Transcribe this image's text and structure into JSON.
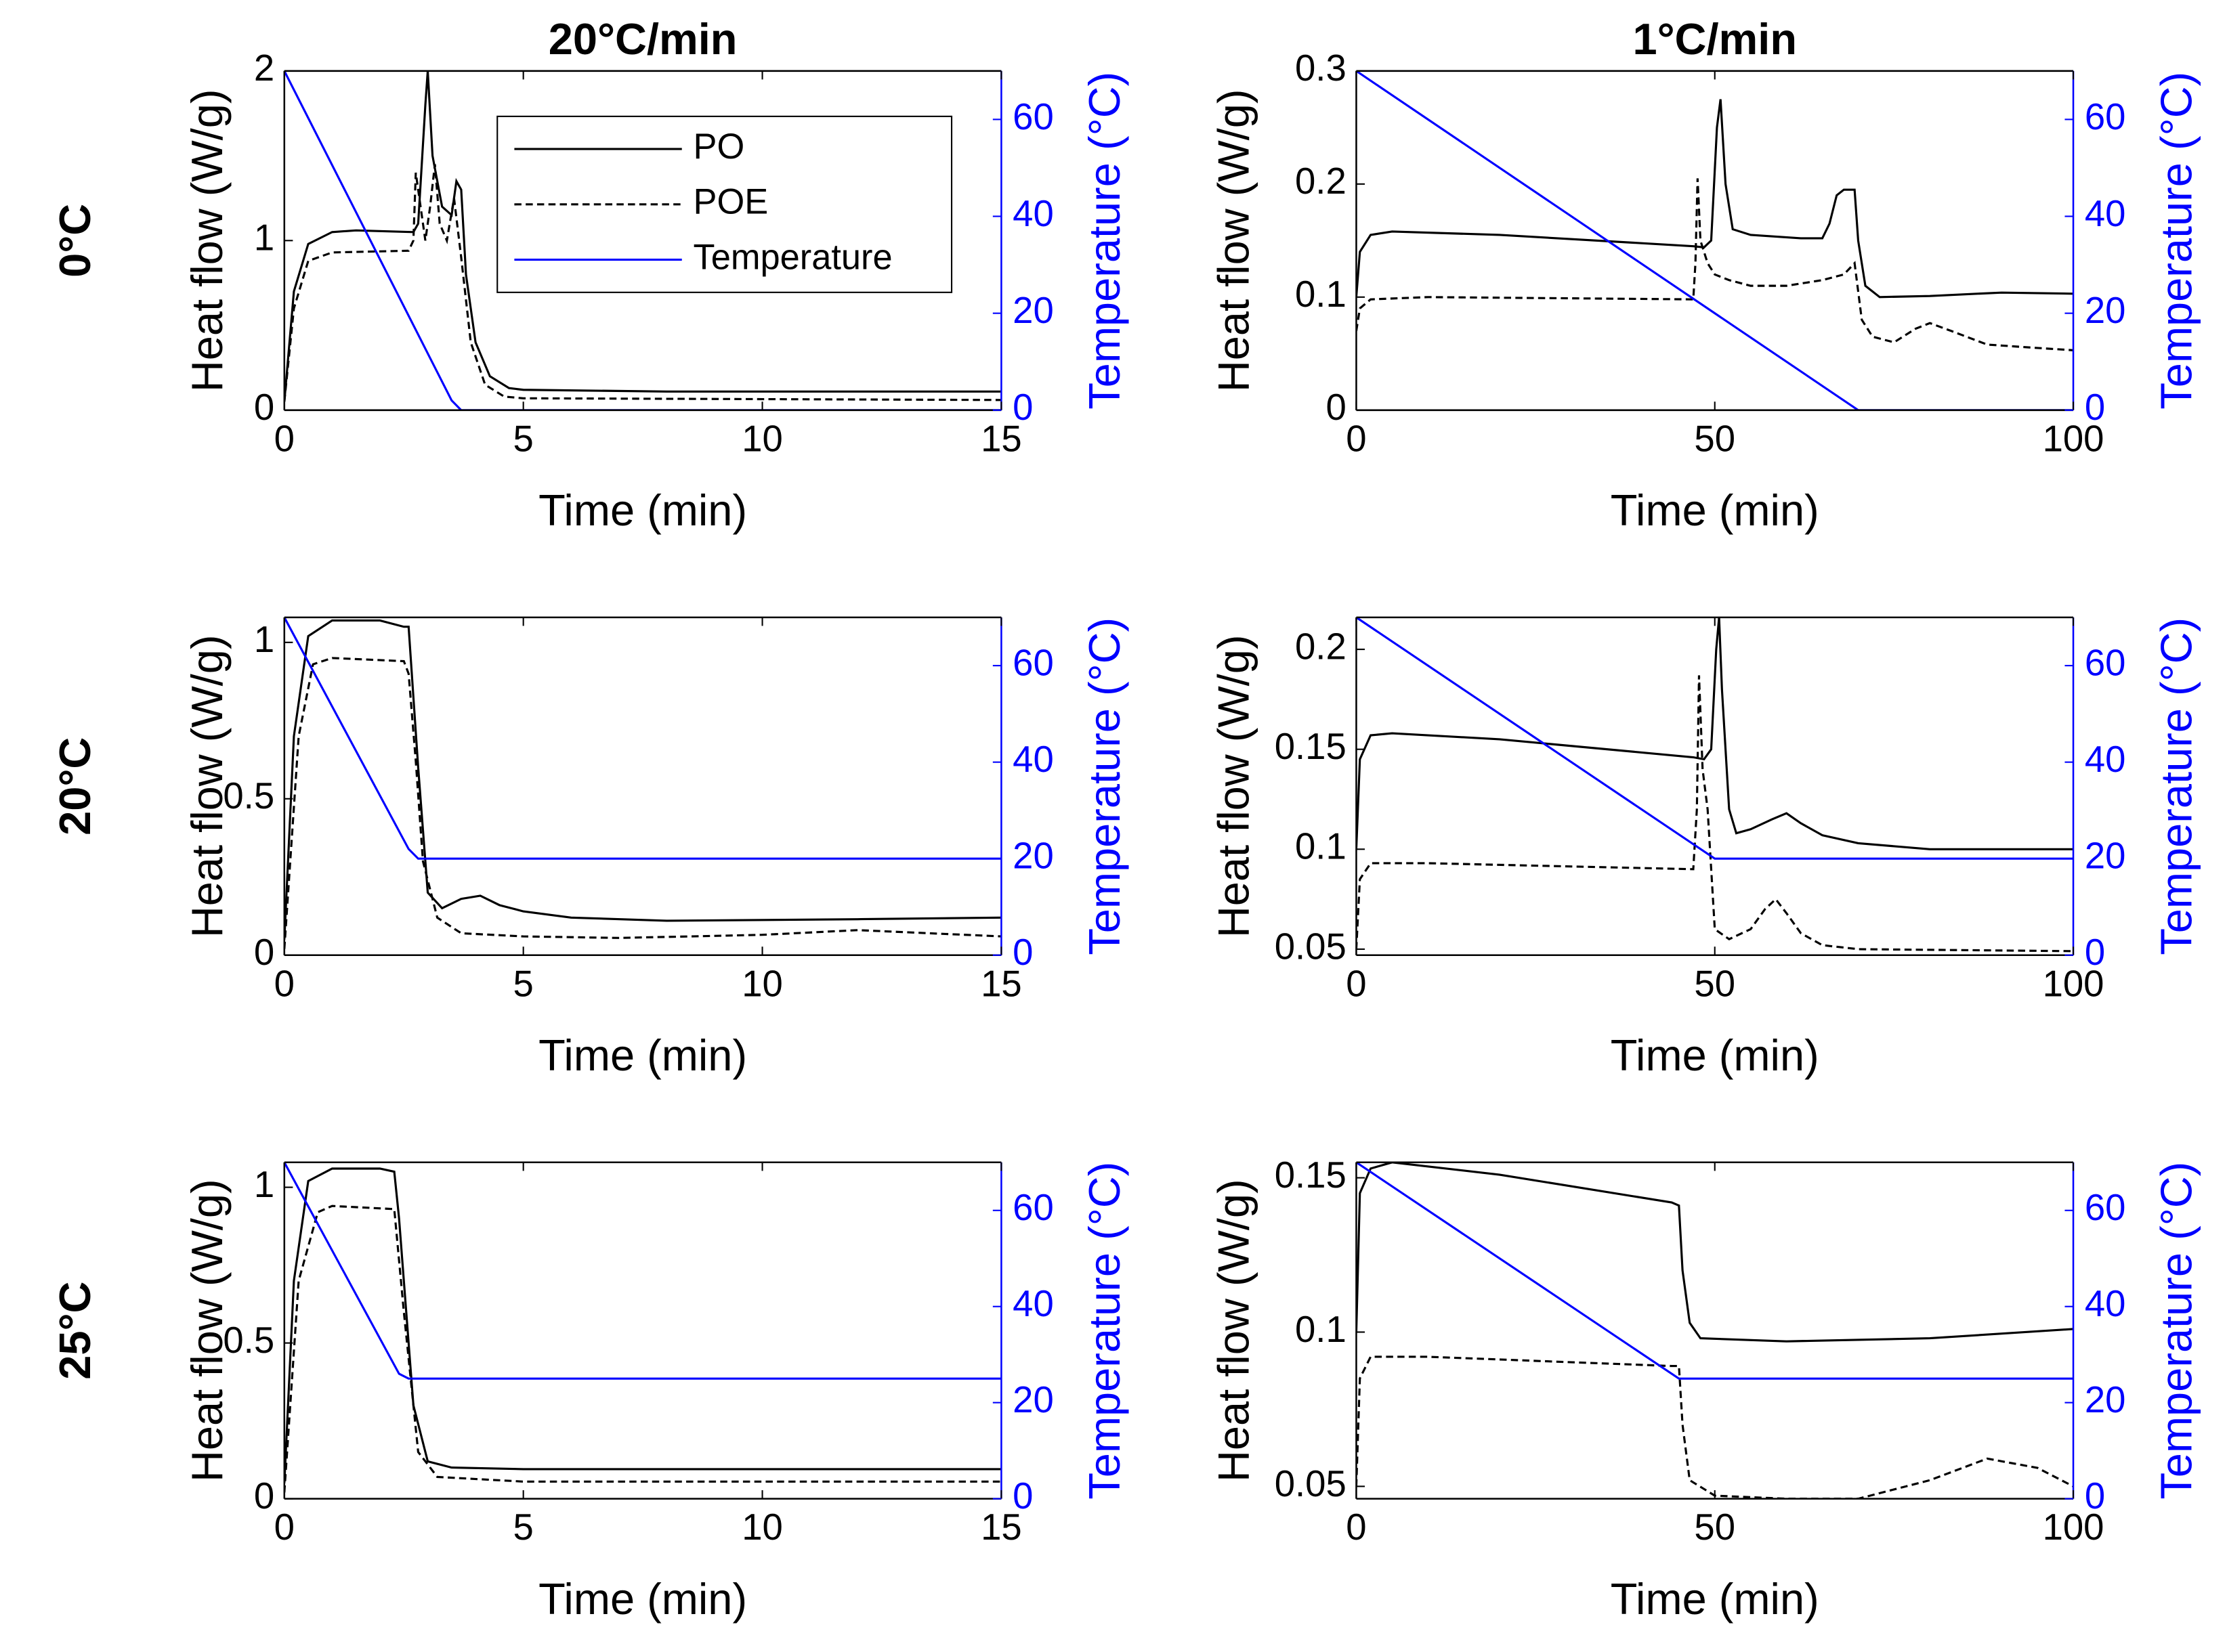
{
  "chart_data": [
    {
      "type": "line",
      "title": "20°C/min",
      "row_label": "0°C",
      "x_label": "Time (min)",
      "y_label": "Heat flow (W/g)",
      "y2_label": "Temperature (°C)",
      "xlim": [
        0,
        15
      ],
      "xticks": [
        0,
        5,
        10,
        15
      ],
      "ylim": [
        0,
        2
      ],
      "yticks": [
        0,
        1,
        2
      ],
      "y2lim": [
        0,
        70
      ],
      "y2ticks": [
        0,
        20,
        40,
        60
      ],
      "legend": "upper right",
      "series": [
        {
          "name": "PO",
          "color": "#000000",
          "linestyle": "solid",
          "x": [
            0,
            0.2,
            0.5,
            1,
            1.5,
            2.7,
            2.8,
            2.95,
            3.0,
            3.1,
            3.3,
            3.5,
            3.6,
            3.7,
            3.8,
            4.0,
            4.3,
            4.7,
            5,
            8,
            15
          ],
          "values": [
            0.05,
            0.7,
            0.98,
            1.05,
            1.06,
            1.05,
            1.1,
            1.8,
            2.0,
            1.5,
            1.2,
            1.15,
            1.35,
            1.3,
            0.8,
            0.4,
            0.2,
            0.13,
            0.12,
            0.11,
            0.11
          ]
        },
        {
          "name": "POE",
          "color": "#000000",
          "linestyle": "dashed",
          "x": [
            0,
            0.2,
            0.5,
            1,
            2.6,
            2.7,
            2.75,
            2.85,
            2.95,
            3.05,
            3.15,
            3.25,
            3.4,
            3.55,
            3.7,
            3.9,
            4.2,
            4.6,
            5,
            15
          ],
          "values": [
            0.05,
            0.6,
            0.88,
            0.93,
            0.94,
            1.0,
            1.4,
            1.2,
            1.0,
            1.2,
            1.45,
            1.1,
            1.0,
            1.25,
            0.9,
            0.4,
            0.15,
            0.08,
            0.07,
            0.06
          ]
        },
        {
          "name": "Temperature",
          "color": "#0000ff",
          "linestyle": "solid",
          "axis": "y2",
          "x": [
            0,
            3.5,
            3.7,
            15
          ],
          "values": [
            70,
            2,
            0,
            0
          ]
        }
      ]
    },
    {
      "type": "line",
      "title": "1°C/min",
      "x_label": "Time (min)",
      "y_label": "Heat flow (W/g)",
      "y2_label": "Temperature (°C)",
      "xlim": [
        0,
        100
      ],
      "xticks": [
        0,
        50,
        100
      ],
      "ylim": [
        0,
        0.3
      ],
      "yticks": [
        0,
        0.1,
        0.2,
        0.3
      ],
      "y2lim": [
        0,
        70
      ],
      "y2ticks": [
        0,
        20,
        40,
        60
      ],
      "series": [
        {
          "color": "#000000",
          "linestyle": "solid",
          "x": [
            0,
            0.5,
            2,
            5,
            20,
            47,
            48.5,
            49.5,
            50.3,
            50.8,
            51.5,
            52.5,
            55,
            62,
            65,
            66,
            67,
            68,
            69.5,
            70,
            71,
            73,
            80,
            90,
            100
          ],
          "values": [
            0.1,
            0.14,
            0.155,
            0.158,
            0.155,
            0.145,
            0.144,
            0.15,
            0.25,
            0.275,
            0.2,
            0.16,
            0.155,
            0.152,
            0.152,
            0.165,
            0.19,
            0.195,
            0.195,
            0.15,
            0.11,
            0.1,
            0.101,
            0.104,
            0.103
          ]
        },
        {
          "color": "#000000",
          "linestyle": "dashed",
          "x": [
            0,
            0.5,
            2,
            10,
            47,
            47.3,
            47.6,
            48,
            49,
            50,
            52,
            55,
            60,
            65,
            68,
            69.5,
            70.5,
            72,
            75,
            78,
            80,
            83,
            88,
            95,
            100
          ],
          "values": [
            0.07,
            0.09,
            0.098,
            0.1,
            0.098,
            0.13,
            0.205,
            0.15,
            0.13,
            0.12,
            0.115,
            0.11,
            0.11,
            0.115,
            0.12,
            0.13,
            0.08,
            0.065,
            0.06,
            0.072,
            0.077,
            0.07,
            0.058,
            0.055,
            0.053
          ]
        },
        {
          "color": "#0000ff",
          "linestyle": "solid",
          "axis": "y2",
          "x": [
            0,
            70,
            100
          ],
          "values": [
            70,
            0,
            0
          ]
        }
      ]
    },
    {
      "type": "line",
      "row_label": "20°C",
      "x_label": "Time (min)",
      "y_label": "Heat flow (W/g)",
      "y2_label": "Temperature (°C)",
      "xlim": [
        0,
        15
      ],
      "xticks": [
        0,
        5,
        10,
        15
      ],
      "ylim": [
        0,
        1.08
      ],
      "yticks": [
        0,
        0.5,
        1
      ],
      "y2lim": [
        0,
        70
      ],
      "y2ticks": [
        0,
        20,
        40,
        60
      ],
      "series": [
        {
          "color": "#000000",
          "linestyle": "solid",
          "x": [
            0,
            0.2,
            0.5,
            1,
            2,
            2.5,
            2.6,
            2.8,
            3.0,
            3.3,
            3.7,
            4.1,
            4.5,
            5,
            6,
            8,
            12,
            15
          ],
          "values": [
            0.05,
            0.7,
            1.02,
            1.07,
            1.07,
            1.05,
            1.05,
            0.6,
            0.2,
            0.15,
            0.18,
            0.19,
            0.16,
            0.14,
            0.12,
            0.11,
            0.115,
            0.12
          ]
        },
        {
          "color": "#000000",
          "linestyle": "dashed",
          "x": [
            0,
            0.3,
            0.6,
            1,
            2.5,
            2.6,
            2.75,
            2.9,
            3.2,
            3.7,
            5,
            7,
            10,
            12,
            15
          ],
          "values": [
            0.02,
            0.7,
            0.93,
            0.95,
            0.94,
            0.9,
            0.62,
            0.3,
            0.12,
            0.07,
            0.06,
            0.055,
            0.065,
            0.08,
            0.06
          ]
        },
        {
          "color": "#0000ff",
          "linestyle": "solid",
          "axis": "y2",
          "x": [
            0,
            2.6,
            2.8,
            15
          ],
          "values": [
            70,
            22,
            20,
            20
          ]
        }
      ]
    },
    {
      "type": "line",
      "x_label": "Time (min)",
      "y_label": "Heat flow (W/g)",
      "y2_label": "Temperature (°C)",
      "xlim": [
        0,
        100
      ],
      "xticks": [
        0,
        50,
        100
      ],
      "ylim": [
        0.047,
        0.216
      ],
      "yticks": [
        0.05,
        0.1,
        0.15,
        0.2
      ],
      "y2lim": [
        0,
        70
      ],
      "y2ticks": [
        0,
        20,
        40,
        60
      ],
      "series": [
        {
          "color": "#000000",
          "linestyle": "solid",
          "x": [
            0,
            0.5,
            2,
            5,
            20,
            47,
            48.5,
            49.5,
            50.2,
            50.6,
            51,
            52,
            53,
            55,
            58,
            60,
            62,
            65,
            70,
            80,
            100
          ],
          "values": [
            0.1,
            0.145,
            0.157,
            0.158,
            0.155,
            0.146,
            0.145,
            0.15,
            0.2,
            0.216,
            0.18,
            0.12,
            0.108,
            0.11,
            0.115,
            0.118,
            0.113,
            0.107,
            0.103,
            0.1,
            0.1
          ]
        },
        {
          "color": "#000000",
          "linestyle": "dashed",
          "x": [
            0,
            0.5,
            2,
            10,
            47,
            47.5,
            47.8,
            48.3,
            49,
            49.5,
            50,
            52,
            55,
            57,
            58.5,
            60,
            62,
            65,
            70,
            100
          ],
          "values": [
            0.05,
            0.085,
            0.093,
            0.093,
            0.09,
            0.12,
            0.187,
            0.14,
            0.12,
            0.09,
            0.06,
            0.055,
            0.06,
            0.07,
            0.075,
            0.068,
            0.058,
            0.052,
            0.05,
            0.049
          ]
        },
        {
          "color": "#0000ff",
          "linestyle": "solid",
          "axis": "y2",
          "x": [
            0,
            50,
            100
          ],
          "values": [
            70,
            20,
            20
          ]
        }
      ]
    },
    {
      "type": "line",
      "row_label": "25°C",
      "x_label": "Time (min)",
      "y_label": "Heat flow (W/g)",
      "y2_label": "Temperature (°C)",
      "xlim": [
        0,
        15
      ],
      "xticks": [
        0,
        5,
        10,
        15
      ],
      "ylim": [
        0,
        1.08
      ],
      "yticks": [
        0,
        0.5,
        1
      ],
      "y2lim": [
        0,
        70
      ],
      "y2ticks": [
        0,
        20,
        40,
        60
      ],
      "series": [
        {
          "color": "#000000",
          "linestyle": "solid",
          "x": [
            0,
            0.2,
            0.5,
            1,
            2,
            2.3,
            2.4,
            2.7,
            3.0,
            3.5,
            5,
            15
          ],
          "values": [
            0.05,
            0.7,
            1.02,
            1.06,
            1.06,
            1.05,
            0.9,
            0.3,
            0.12,
            0.1,
            0.095,
            0.095
          ]
        },
        {
          "color": "#000000",
          "linestyle": "dashed",
          "x": [
            0,
            0.3,
            0.7,
            1,
            2.3,
            2.5,
            2.8,
            3.2,
            5,
            15
          ],
          "values": [
            0.02,
            0.7,
            0.92,
            0.94,
            0.93,
            0.6,
            0.15,
            0.07,
            0.055,
            0.055
          ]
        },
        {
          "color": "#0000ff",
          "linestyle": "solid",
          "axis": "y2",
          "x": [
            0,
            2.4,
            2.6,
            15
          ],
          "values": [
            70,
            26,
            25,
            25
          ]
        }
      ]
    },
    {
      "type": "line",
      "x_label": "Time (min)",
      "y_label": "Heat flow (W/g)",
      "y2_label": "Temperature (°C)",
      "xlim": [
        0,
        100
      ],
      "xticks": [
        0,
        50,
        100
      ],
      "ylim": [
        0.046,
        0.155
      ],
      "yticks": [
        0.05,
        0.1,
        0.15
      ],
      "y2lim": [
        0,
        70
      ],
      "y2ticks": [
        0,
        20,
        40,
        60
      ],
      "series": [
        {
          "color": "#000000",
          "linestyle": "solid",
          "x": [
            0,
            0.5,
            2,
            5,
            20,
            44,
            45,
            45.5,
            46.5,
            48,
            60,
            80,
            100
          ],
          "values": [
            0.1,
            0.145,
            0.153,
            0.155,
            0.151,
            0.142,
            0.141,
            0.12,
            0.103,
            0.098,
            0.097,
            0.098,
            0.101
          ]
        },
        {
          "color": "#000000",
          "linestyle": "dashed",
          "x": [
            0,
            0.5,
            2,
            10,
            44,
            45,
            45.5,
            46.5,
            50,
            60,
            70,
            80,
            88,
            95,
            100
          ],
          "values": [
            0.05,
            0.085,
            0.092,
            0.092,
            0.089,
            0.089,
            0.07,
            0.052,
            0.047,
            0.046,
            0.046,
            0.052,
            0.059,
            0.056,
            0.05
          ]
        },
        {
          "color": "#0000ff",
          "linestyle": "solid",
          "axis": "y2",
          "x": [
            0,
            45,
            100
          ],
          "values": [
            70,
            25,
            25
          ]
        }
      ]
    }
  ]
}
